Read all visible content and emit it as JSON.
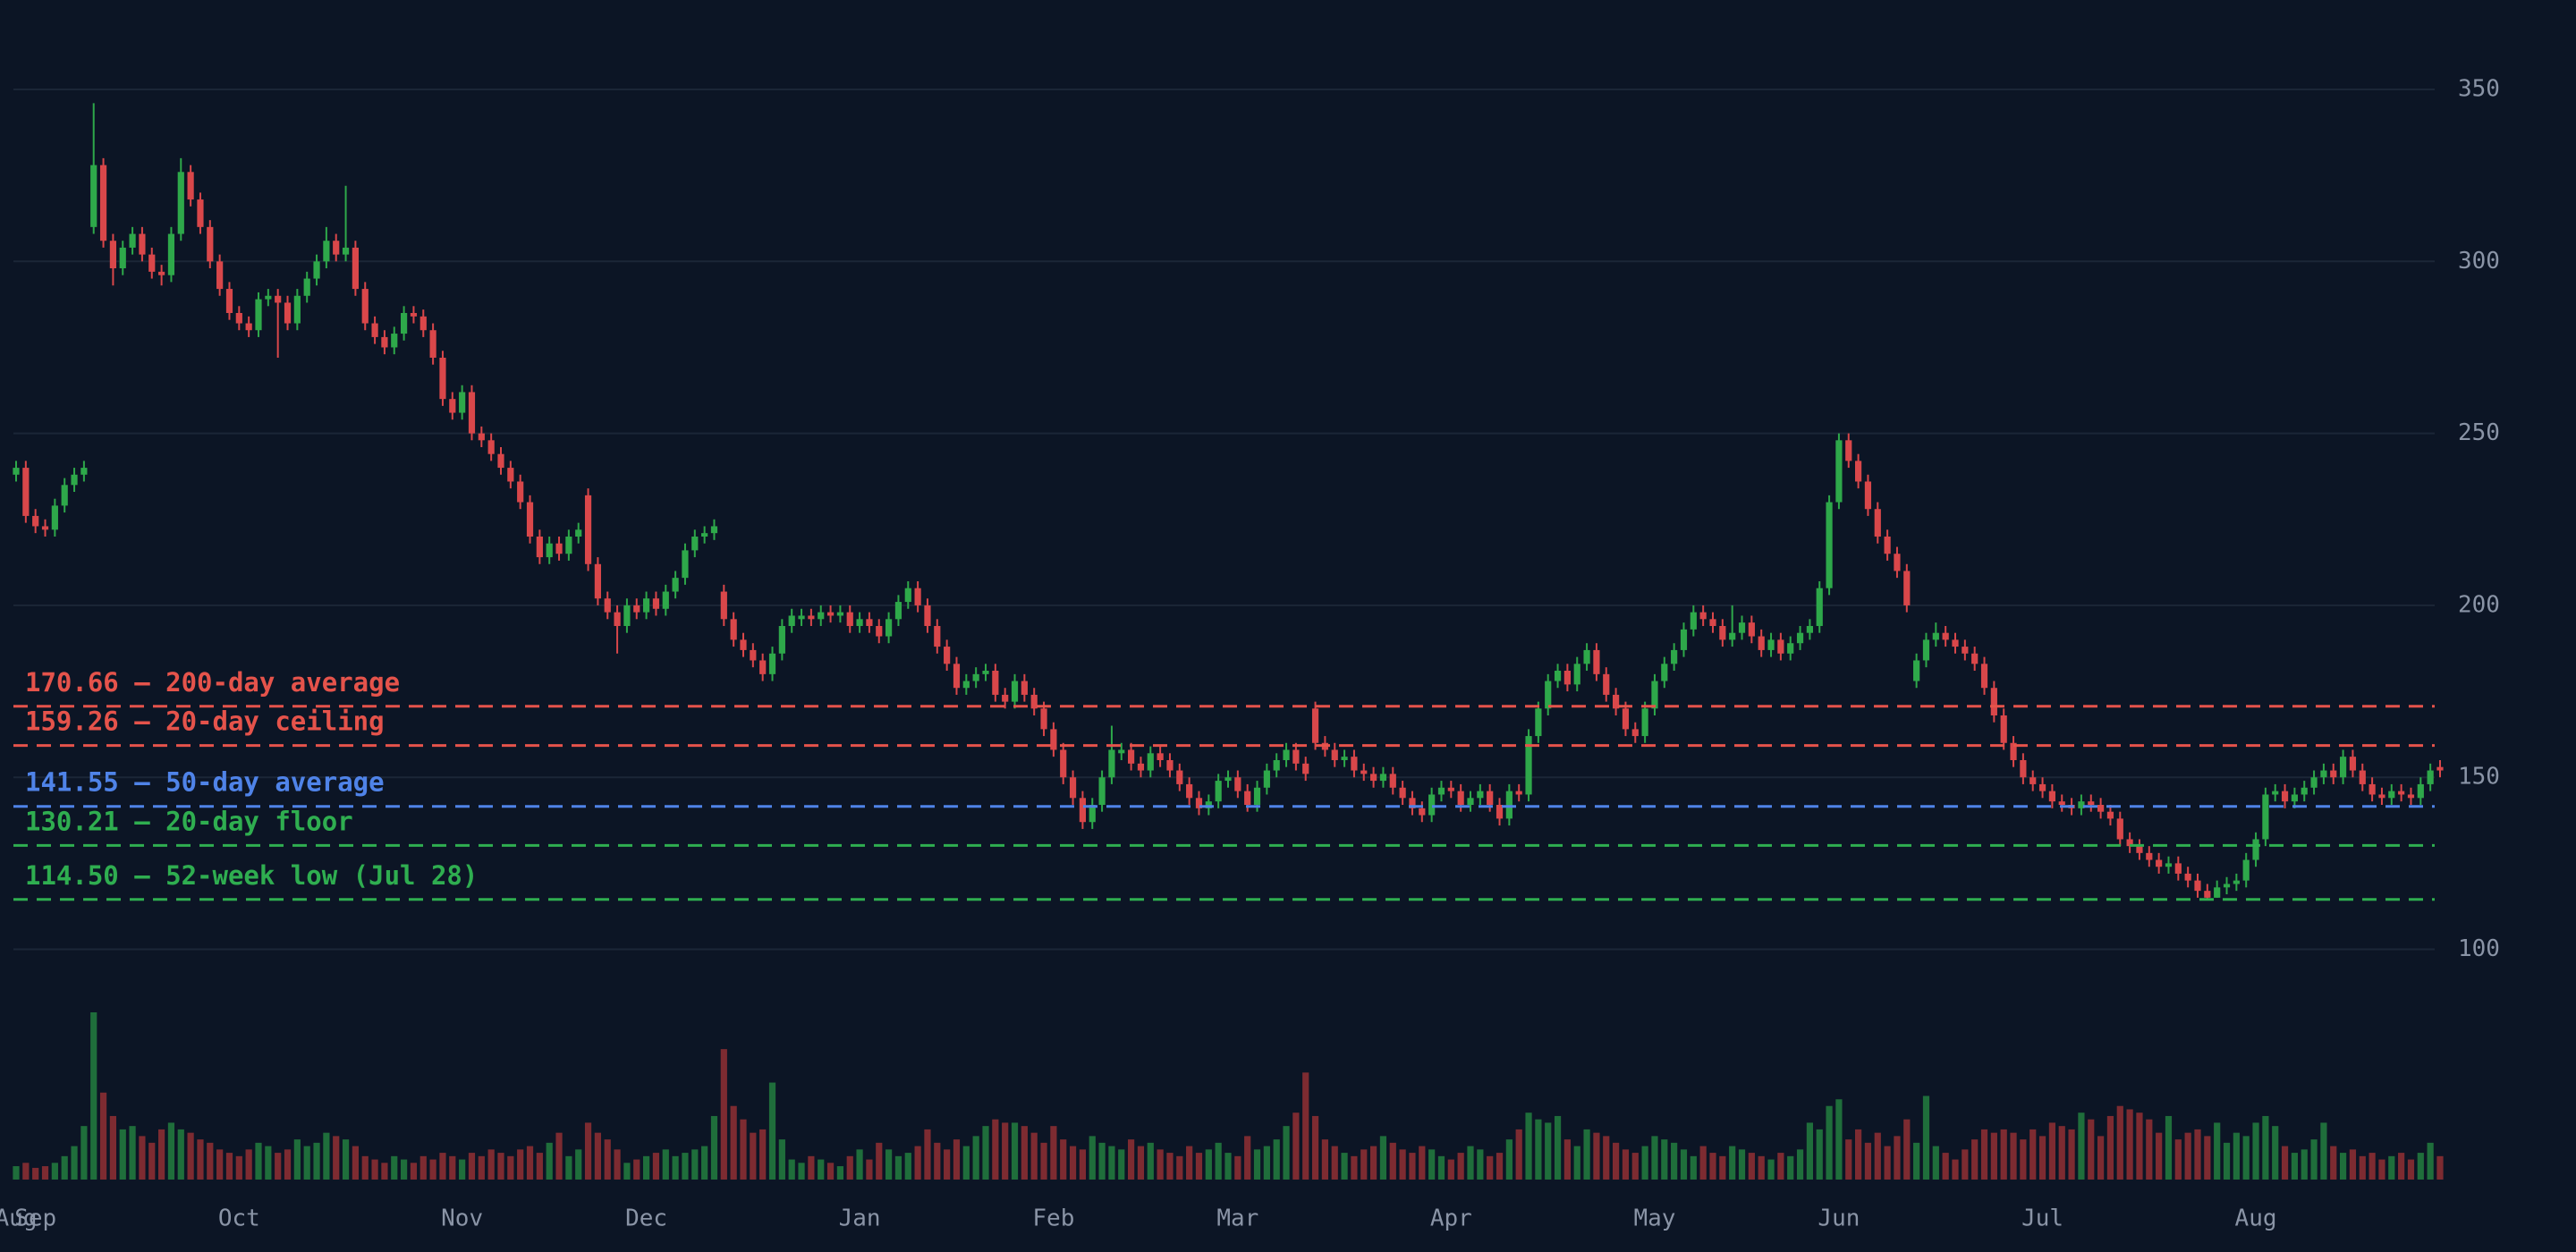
{
  "chart_data": {
    "type": "candlestick",
    "up_color": "#2ea84a",
    "down_color": "#d9474a",
    "up_volume_color": "#1f6e3b",
    "down_volume_color": "#7d2b31",
    "ylim": [
      90,
      376
    ],
    "yticks": [
      100,
      150,
      200,
      250,
      300,
      350
    ],
    "grid": true,
    "vlim": [
      0,
      100
    ],
    "xticks": [
      {
        "value": 0,
        "label": "Aug"
      },
      {
        "value": 2,
        "label": "Sep"
      },
      {
        "value": 23,
        "label": "Oct"
      },
      {
        "value": 46,
        "label": "Nov"
      },
      {
        "value": 65,
        "label": "Dec"
      },
      {
        "value": 87,
        "label": "Jan"
      },
      {
        "value": 107,
        "label": "Feb"
      },
      {
        "value": 126,
        "label": "Mar"
      },
      {
        "value": 148,
        "label": "Apr"
      },
      {
        "value": 169,
        "label": "May"
      },
      {
        "value": 188,
        "label": "Jun"
      },
      {
        "value": 209,
        "label": "Jul"
      },
      {
        "value": 231,
        "label": "Aug"
      }
    ],
    "reference_lines": [
      {
        "value": 170.66,
        "label": "170.66 — 200-day average",
        "color": "#e5534b"
      },
      {
        "value": 159.26,
        "label": "159.26 — 20-day ceiling",
        "color": "#e5534b"
      },
      {
        "value": 141.55,
        "label": "141.55 — 50-day average",
        "color": "#4f83e8"
      },
      {
        "value": 130.21,
        "label": "130.21 — 20-day floor",
        "color": "#2fae50"
      },
      {
        "value": 114.5,
        "label": "114.50 — 52-week low (Jul 28)",
        "color": "#2fae50"
      }
    ],
    "open": [
      238,
      240,
      226,
      223,
      222,
      229,
      235,
      238,
      310,
      328,
      306,
      298,
      304,
      308,
      302,
      297,
      296,
      308,
      326,
      318,
      310,
      300,
      292,
      285,
      282,
      280,
      289,
      290,
      288,
      282,
      290,
      295,
      300,
      306,
      302,
      304,
      292,
      282,
      278,
      275,
      279,
      285,
      284,
      280,
      272,
      260,
      256,
      262,
      250,
      248,
      244,
      240,
      236,
      230,
      220,
      214,
      218,
      215,
      220,
      232,
      212,
      202,
      198,
      194,
      200,
      198,
      202,
      199,
      204,
      208,
      216,
      220,
      221,
      204,
      196,
      190,
      187,
      184,
      180,
      186,
      194,
      196,
      197,
      196,
      198,
      197,
      198,
      194,
      196,
      194,
      191,
      196,
      201,
      205,
      200,
      194,
      188,
      183,
      176,
      178,
      180,
      181,
      174,
      172,
      178,
      174,
      170,
      164,
      158,
      150,
      144,
      137,
      142,
      150,
      157,
      158,
      154,
      152,
      157,
      155,
      152,
      148,
      144,
      141,
      143,
      149,
      150,
      146,
      142,
      147,
      152,
      155,
      158,
      154,
      170,
      160,
      158,
      155,
      156,
      152,
      151,
      149,
      151,
      147,
      144,
      141,
      139,
      145,
      147,
      146,
      142,
      144,
      146,
      142,
      138,
      146,
      145,
      162,
      170,
      178,
      181,
      177,
      183,
      187,
      180,
      174,
      170,
      164,
      162,
      170,
      178,
      183,
      187,
      193,
      198,
      196,
      194,
      190,
      192,
      195,
      191,
      187,
      190,
      186,
      189,
      192,
      194,
      205,
      230,
      248,
      242,
      236,
      228,
      220,
      215,
      210,
      178,
      184,
      190,
      192,
      190,
      188,
      186,
      183,
      176,
      168,
      160,
      155,
      150,
      148,
      146,
      143,
      142,
      141,
      143,
      142,
      140,
      138,
      132,
      130,
      128,
      126,
      124,
      125,
      122,
      120,
      117,
      115,
      118,
      119,
      120,
      126,
      132,
      145,
      146,
      143,
      145,
      147,
      150,
      152,
      150,
      156,
      152,
      148,
      145,
      144,
      146,
      145,
      144,
      148,
      153
    ],
    "high": [
      242,
      242,
      228,
      225,
      231,
      237,
      240,
      242,
      346,
      330,
      308,
      306,
      310,
      310,
      304,
      299,
      310,
      330,
      328,
      320,
      312,
      302,
      294,
      287,
      284,
      291,
      292,
      292,
      290,
      292,
      297,
      302,
      310,
      308,
      322,
      306,
      294,
      284,
      280,
      281,
      287,
      287,
      286,
      282,
      274,
      262,
      264,
      264,
      252,
      250,
      246,
      242,
      238,
      232,
      222,
      220,
      220,
      222,
      224,
      234,
      214,
      204,
      200,
      202,
      202,
      204,
      204,
      206,
      210,
      218,
      222,
      223,
      225,
      206,
      198,
      192,
      189,
      186,
      188,
      196,
      199,
      199,
      199,
      200,
      200,
      200,
      200,
      198,
      198,
      196,
      198,
      203,
      207,
      207,
      202,
      196,
      190,
      185,
      180,
      182,
      183,
      183,
      176,
      180,
      180,
      176,
      172,
      166,
      160,
      152,
      146,
      144,
      152,
      165,
      160,
      160,
      156,
      159,
      159,
      157,
      154,
      150,
      146,
      145,
      151,
      152,
      152,
      148,
      149,
      154,
      157,
      160,
      160,
      156,
      172,
      162,
      160,
      158,
      158,
      154,
      153,
      153,
      153,
      149,
      146,
      143,
      147,
      149,
      149,
      148,
      146,
      148,
      148,
      144,
      148,
      148,
      164,
      172,
      180,
      183,
      183,
      185,
      189,
      189,
      182,
      176,
      172,
      166,
      172,
      180,
      185,
      189,
      195,
      200,
      200,
      198,
      196,
      200,
      197,
      197,
      193,
      192,
      192,
      191,
      194,
      196,
      207,
      232,
      250,
      250,
      244,
      238,
      230,
      222,
      217,
      212,
      186,
      192,
      195,
      194,
      192,
      190,
      188,
      185,
      178,
      170,
      162,
      157,
      152,
      150,
      148,
      145,
      144,
      145,
      145,
      144,
      142,
      140,
      134,
      132,
      130,
      128,
      127,
      127,
      124,
      122,
      119,
      120,
      121,
      122,
      128,
      134,
      147,
      148,
      148,
      147,
      149,
      152,
      154,
      154,
      158,
      158,
      154,
      150,
      147,
      148,
      148,
      147,
      150,
      154,
      155
    ],
    "low": [
      236,
      224,
      221,
      220,
      220,
      227,
      233,
      236,
      308,
      304,
      293,
      296,
      302,
      300,
      295,
      293,
      294,
      306,
      316,
      308,
      298,
      290,
      283,
      280,
      278,
      278,
      287,
      272,
      280,
      280,
      288,
      293,
      298,
      300,
      300,
      290,
      280,
      276,
      273,
      273,
      277,
      282,
      278,
      270,
      258,
      254,
      254,
      248,
      246,
      242,
      238,
      234,
      228,
      218,
      212,
      212,
      213,
      213,
      218,
      210,
      200,
      196,
      186,
      192,
      196,
      196,
      197,
      197,
      202,
      206,
      214,
      218,
      219,
      194,
      188,
      185,
      182,
      178,
      178,
      184,
      192,
      194,
      194,
      194,
      195,
      195,
      192,
      192,
      192,
      189,
      189,
      194,
      199,
      198,
      192,
      186,
      181,
      174,
      174,
      176,
      178,
      172,
      170,
      170,
      172,
      168,
      162,
      156,
      148,
      142,
      135,
      135,
      140,
      148,
      155,
      152,
      150,
      150,
      153,
      150,
      146,
      142,
      139,
      139,
      141,
      147,
      144,
      140,
      140,
      145,
      150,
      153,
      152,
      149,
      158,
      156,
      153,
      153,
      150,
      149,
      147,
      147,
      145,
      142,
      139,
      137,
      137,
      143,
      144,
      140,
      140,
      142,
      140,
      136,
      136,
      143,
      143,
      160,
      168,
      176,
      175,
      175,
      181,
      178,
      172,
      168,
      162,
      160,
      160,
      168,
      176,
      181,
      185,
      191,
      194,
      192,
      188,
      188,
      190,
      189,
      185,
      185,
      184,
      184,
      187,
      190,
      192,
      203,
      228,
      240,
      234,
      226,
      218,
      213,
      208,
      198,
      176,
      182,
      188,
      188,
      186,
      184,
      181,
      174,
      166,
      158,
      153,
      148,
      146,
      144,
      141,
      140,
      139,
      139,
      140,
      138,
      136,
      130,
      128,
      126,
      124,
      122,
      122,
      120,
      118,
      115,
      114.5,
      115,
      116,
      117,
      118,
      124,
      130,
      143,
      141,
      141,
      143,
      145,
      148,
      148,
      148,
      150,
      146,
      143,
      142,
      142,
      143,
      142,
      142,
      146,
      150
    ],
    "close": [
      240,
      226,
      223,
      222,
      229,
      235,
      238,
      240,
      328,
      306,
      298,
      304,
      308,
      302,
      297,
      296,
      308,
      326,
      318,
      310,
      300,
      292,
      285,
      282,
      280,
      289,
      290,
      288,
      282,
      290,
      295,
      300,
      306,
      302,
      304,
      292,
      282,
      278,
      275,
      279,
      285,
      284,
      280,
      272,
      260,
      256,
      262,
      250,
      248,
      244,
      240,
      236,
      230,
      220,
      214,
      218,
      215,
      220,
      222,
      212,
      202,
      198,
      194,
      200,
      198,
      202,
      199,
      204,
      208,
      216,
      220,
      221,
      223,
      196,
      190,
      187,
      184,
      180,
      186,
      194,
      197,
      197,
      196,
      198,
      197,
      198,
      194,
      196,
      194,
      191,
      196,
      201,
      205,
      200,
      194,
      188,
      183,
      176,
      178,
      180,
      181,
      174,
      172,
      178,
      174,
      170,
      164,
      158,
      150,
      144,
      137,
      142,
      150,
      158,
      158,
      154,
      152,
      157,
      155,
      152,
      148,
      144,
      141,
      143,
      149,
      150,
      146,
      142,
      147,
      152,
      155,
      158,
      154,
      151,
      160,
      158,
      155,
      156,
      152,
      151,
      149,
      151,
      147,
      144,
      141,
      139,
      145,
      147,
      146,
      142,
      144,
      146,
      142,
      138,
      146,
      145,
      162,
      170,
      178,
      181,
      177,
      183,
      187,
      180,
      174,
      170,
      164,
      162,
      170,
      178,
      183,
      187,
      193,
      198,
      196,
      194,
      190,
      192,
      195,
      191,
      187,
      190,
      186,
      189,
      192,
      194,
      205,
      230,
      248,
      242,
      236,
      228,
      220,
      215,
      210,
      200,
      184,
      190,
      192,
      190,
      188,
      186,
      183,
      176,
      168,
      160,
      155,
      150,
      148,
      146,
      143,
      142,
      141,
      143,
      142,
      140,
      138,
      132,
      130,
      128,
      126,
      124,
      125,
      122,
      120,
      117,
      115,
      118,
      119,
      120,
      126,
      132,
      145,
      146,
      143,
      145,
      147,
      150,
      152,
      150,
      156,
      152,
      148,
      145,
      144,
      146,
      145,
      144,
      148,
      152,
      152
    ],
    "volume": [
      8,
      10,
      7,
      8,
      10,
      14,
      20,
      32,
      100,
      52,
      38,
      30,
      32,
      26,
      22,
      30,
      34,
      30,
      28,
      24,
      22,
      18,
      16,
      14,
      18,
      22,
      20,
      16,
      18,
      24,
      20,
      22,
      28,
      26,
      24,
      20,
      14,
      12,
      10,
      14,
      12,
      10,
      14,
      12,
      16,
      14,
      12,
      16,
      14,
      18,
      16,
      14,
      18,
      20,
      16,
      22,
      28,
      14,
      18,
      34,
      28,
      24,
      18,
      10,
      12,
      14,
      16,
      18,
      14,
      16,
      18,
      20,
      38,
      78,
      44,
      36,
      28,
      30,
      58,
      24,
      12,
      10,
      14,
      12,
      10,
      8,
      14,
      18,
      12,
      22,
      18,
      14,
      16,
      20,
      30,
      22,
      18,
      24,
      20,
      26,
      32,
      36,
      34,
      34,
      32,
      28,
      22,
      32,
      24,
      20,
      18,
      26,
      22,
      20,
      18,
      24,
      20,
      22,
      18,
      16,
      14,
      20,
      16,
      18,
      22,
      16,
      14,
      26,
      18,
      20,
      24,
      32,
      40,
      64,
      38,
      24,
      20,
      16,
      14,
      18,
      20,
      26,
      22,
      18,
      16,
      20,
      18,
      14,
      12,
      16,
      20,
      18,
      14,
      16,
      24,
      30,
      40,
      36,
      34,
      38,
      24,
      20,
      30,
      28,
      26,
      22,
      18,
      16,
      20,
      26,
      24,
      22,
      18,
      14,
      20,
      16,
      14,
      20,
      18,
      16,
      14,
      12,
      16,
      14,
      18,
      34,
      30,
      44,
      48,
      24,
      30,
      22,
      28,
      20,
      26,
      36,
      22,
      50,
      20,
      16,
      12,
      18,
      24,
      30,
      28,
      30,
      28,
      24,
      30,
      26,
      34,
      32,
      30,
      40,
      36,
      26,
      38,
      44,
      42,
      40,
      36,
      28,
      38,
      24,
      28,
      30,
      26,
      34,
      22,
      28,
      26,
      34,
      38,
      32,
      20,
      16,
      18,
      24,
      34,
      20,
      16,
      18,
      14,
      16,
      12,
      14,
      16,
      12,
      16,
      22,
      14
    ]
  }
}
